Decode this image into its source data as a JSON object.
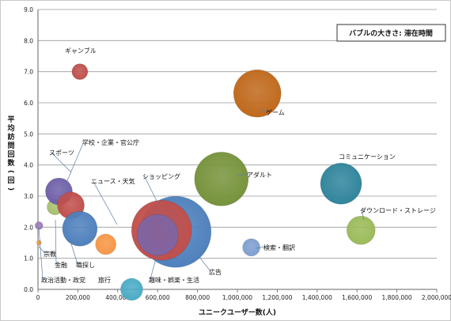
{
  "chart_data": {
    "type": "bubble",
    "legend_note": "バブルの大きさ: 滞在時間",
    "xlabel": "ユニークユーザー数(人)",
    "ylabel": "平均訪問回数(回)",
    "xlim": [
      0,
      2000000
    ],
    "ylim": [
      0,
      9
    ],
    "xticks": [
      0,
      200000,
      400000,
      600000,
      800000,
      1000000,
      1200000,
      1400000,
      1600000,
      1800000,
      2000000
    ],
    "xtick_labels": [
      "0",
      "200,000",
      "400,000",
      "600,000",
      "800,000",
      "1,000,000",
      "1,200,000",
      "1,400,000",
      "1,600,000",
      "1,800,000",
      "2,000,000"
    ],
    "yticks": [
      0,
      1,
      2,
      3,
      4,
      5,
      6,
      7,
      8,
      9
    ],
    "ytick_labels": [
      "0.0",
      "1.0",
      "2.0",
      "3.0",
      "4.0",
      "5.0",
      "6.0",
      "7.0",
      "8.0",
      "9.0"
    ],
    "grid": true,
    "points": [
      {
        "name": "宗教",
        "x": 5000,
        "y": 1.5,
        "r": 3,
        "color": "#f0a040"
      },
      {
        "name": "政治活動・政党",
        "x": 5000,
        "y": 2.05,
        "r": 5,
        "color": "#9b7bb8"
      },
      {
        "name": "金融",
        "x": 85000,
        "y": 2.65,
        "r": 10,
        "color": "#a8c070"
      },
      {
        "name": "スポーツ",
        "x": 105000,
        "y": 3.15,
        "r": 17,
        "color": "#7060a8"
      },
      {
        "name": "学校・企業・官公庁",
        "x": 165000,
        "y": 2.7,
        "r": 17,
        "color": "#c0504d"
      },
      {
        "name": "職探し",
        "x": 210000,
        "y": 1.95,
        "r": 22,
        "color": "#4f81bd"
      },
      {
        "name": "ギャンブル",
        "x": 210000,
        "y": 7.0,
        "r": 10,
        "color": "#c0504d"
      },
      {
        "name": "ニュース・天気",
        "x": 340000,
        "y": 1.45,
        "r": 13,
        "color": "#f79646"
      },
      {
        "name": "旅行",
        "x": 470000,
        "y": 0.0,
        "r": 14,
        "color": "#4bacc6"
      },
      {
        "name": "広告",
        "x": 690000,
        "y": 1.85,
        "r": 45,
        "color": "#4f81bd"
      },
      {
        "name": "ショッピング",
        "x": 620000,
        "y": 1.9,
        "r": 38,
        "color": "#c0504d"
      },
      {
        "name": "趣味・娯楽・生活",
        "x": 600000,
        "y": 1.75,
        "r": 26,
        "color": "#8064a2"
      },
      {
        "name": "アダルト",
        "x": 920000,
        "y": 3.55,
        "r": 34,
        "color": "#77933c"
      },
      {
        "name": "ゲーム",
        "x": 1100000,
        "y": 6.3,
        "r": 30,
        "color": "#c0691d"
      },
      {
        "name": "検索・翻訳",
        "x": 1070000,
        "y": 1.35,
        "r": 11,
        "color": "#7f9fd0"
      },
      {
        "name": "コミュニケーション",
        "x": 1520000,
        "y": 3.4,
        "r": 26,
        "color": "#31859c"
      },
      {
        "name": "ダウンロード・ストレージ",
        "x": 1620000,
        "y": 1.9,
        "r": 18,
        "color": "#9bbb59"
      }
    ]
  }
}
